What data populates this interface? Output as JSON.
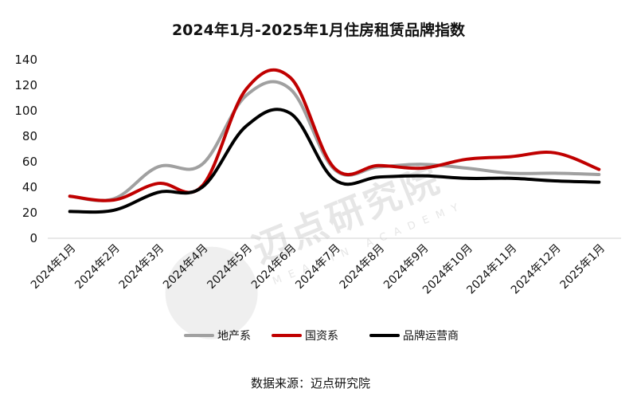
{
  "chart_data": {
    "type": "line",
    "title": "2024年1月-2025年1月住房租赁品牌指数",
    "categories": [
      "2024年1月",
      "2024年2月",
      "2024年3月",
      "2024年4月",
      "2024年5月",
      "2024年6月",
      "2024年7月",
      "2024年8月",
      "2024年9月",
      "2024年10月",
      "2024年11月",
      "2024年12月",
      "2025年1月"
    ],
    "ylim": [
      0,
      140
    ],
    "yticks": [
      0,
      20,
      40,
      60,
      80,
      100,
      120,
      140
    ],
    "grid": false,
    "legend_position": "bottom",
    "series": [
      {
        "name": "地产系",
        "color": "#a0a0a0",
        "values": [
          33,
          31,
          56,
          58,
          112,
          117,
          54,
          56,
          58,
          55,
          51,
          51,
          50
        ]
      },
      {
        "name": "国资系",
        "color": "#c00000",
        "values": [
          33,
          30,
          43,
          41,
          117,
          126,
          55,
          57,
          55,
          62,
          64,
          67,
          54
        ]
      },
      {
        "name": "品牌运营商",
        "color": "#000000",
        "values": [
          21,
          22,
          36,
          40,
          88,
          98,
          46,
          48,
          49,
          47,
          47,
          45,
          44
        ]
      }
    ]
  },
  "source": "数据来源：迈点研究院",
  "watermark": {
    "text": "迈点研究院",
    "subtext": "MEADIN ACADEMY"
  }
}
